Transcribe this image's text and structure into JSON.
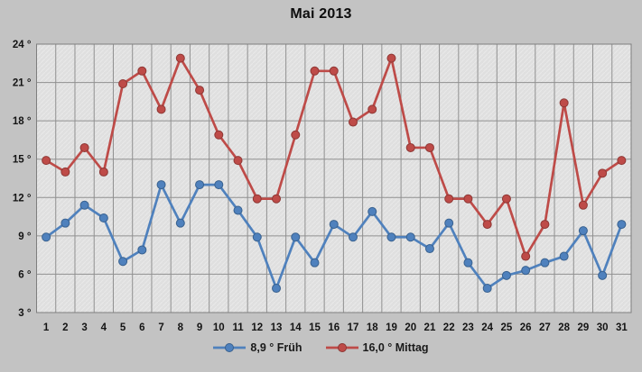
{
  "title": "Mai 2013",
  "colors": {
    "background": "#C3C3C3",
    "plot_background": "#DFDFDF",
    "plot_texture": "#E9E9E9",
    "gridline": "#909090",
    "plot_border": "#7F7F7F",
    "text": "#141414"
  },
  "chart_data": {
    "type": "line",
    "title": "Mai 2013",
    "categories": [
      1,
      2,
      3,
      4,
      5,
      6,
      7,
      8,
      9,
      10,
      11,
      12,
      13,
      14,
      15,
      16,
      17,
      18,
      19,
      20,
      21,
      22,
      23,
      24,
      25,
      26,
      27,
      28,
      29,
      30,
      31
    ],
    "series": [
      {
        "name": "8,9 ° Früh",
        "color": "#4F81BD",
        "marker_stroke": "#38618F",
        "values": [
          8.9,
          10.0,
          11.4,
          10.4,
          7.0,
          7.9,
          13.0,
          10.0,
          13.0,
          13.0,
          11.0,
          8.9,
          4.9,
          8.9,
          6.9,
          9.9,
          8.9,
          10.9,
          8.9,
          8.9,
          8.0,
          10.0,
          6.9,
          4.9,
          5.9,
          6.3,
          6.9,
          7.4,
          9.4,
          5.9,
          9.9
        ]
      },
      {
        "name": "16,0 ° Mittag",
        "color": "#BE4B48",
        "marker_stroke": "#8E3734",
        "values": [
          14.9,
          14.0,
          15.9,
          14.0,
          20.9,
          21.9,
          18.9,
          22.9,
          20.4,
          16.9,
          14.9,
          11.9,
          11.9,
          16.9,
          21.9,
          21.9,
          17.9,
          18.9,
          22.9,
          15.9,
          15.9,
          11.9,
          11.9,
          9.9,
          11.9,
          7.4,
          9.9,
          19.4,
          11.4,
          13.9,
          14.9
        ]
      }
    ],
    "xlabel": "",
    "ylabel": "",
    "ylim": [
      3,
      24
    ],
    "ytick_step": 3,
    "ytick_suffix": " °",
    "grid": "major-x-and-y",
    "legend_position": "bottom-center"
  }
}
